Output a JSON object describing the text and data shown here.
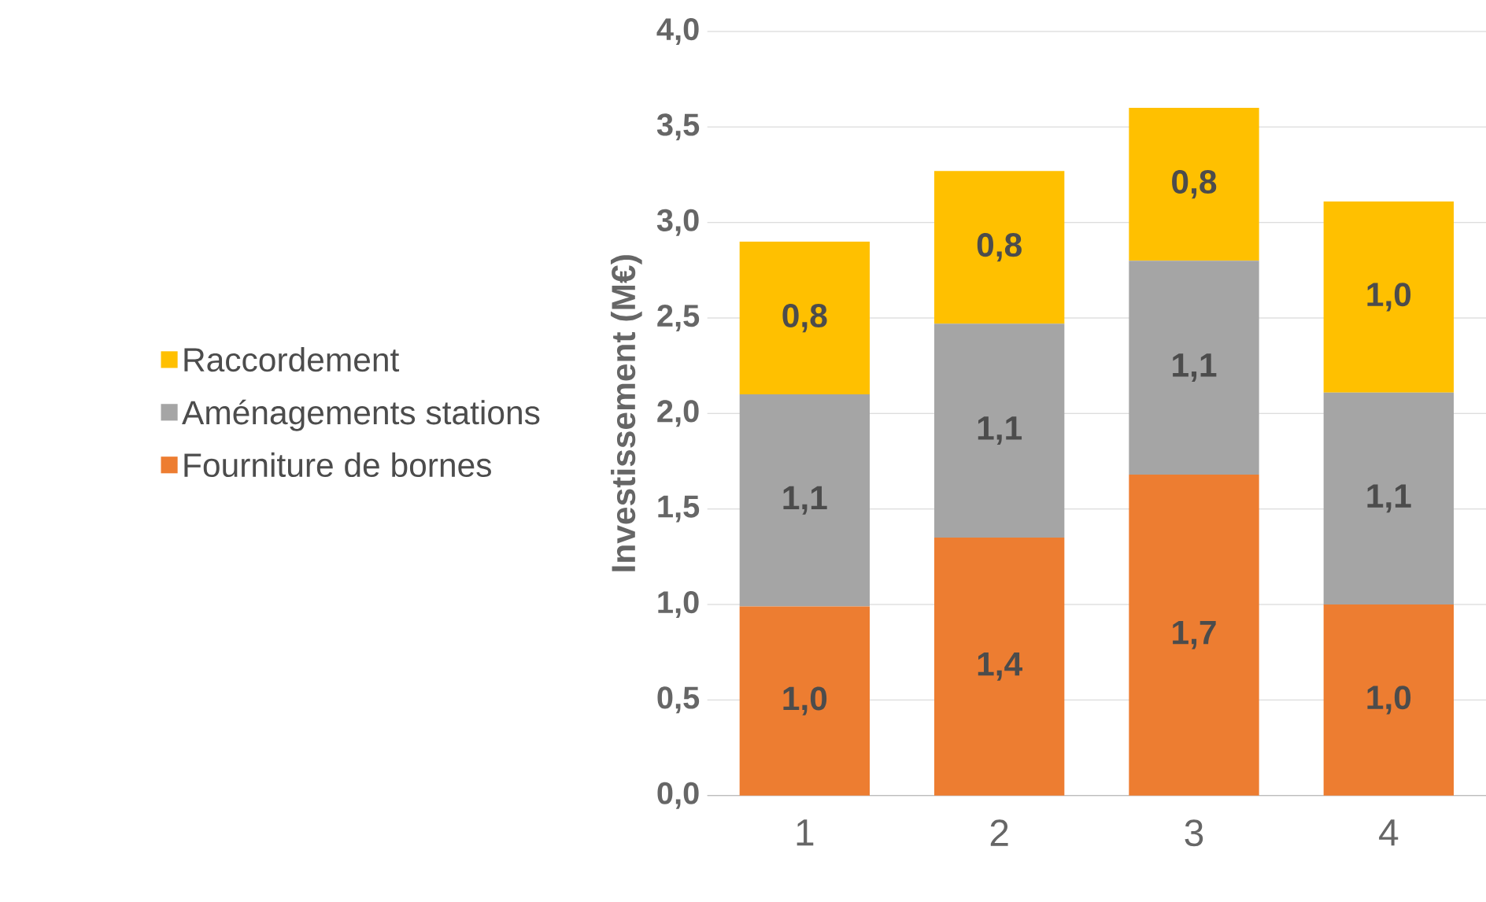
{
  "chart_data": {
    "type": "bar",
    "stacked": true,
    "ylabel": "Investissement (M€)",
    "categories": [
      "1",
      "2",
      "3",
      "4"
    ],
    "series": [
      {
        "name": "Fourniture de bornes",
        "color": "#ed7d31",
        "values": [
          0.99,
          1.35,
          1.68,
          1.0
        ],
        "value_labels": [
          "1,0",
          "1,4",
          "1,7",
          "1,0"
        ]
      },
      {
        "name": "Aménagements stations",
        "color": "#a5a5a5",
        "values": [
          1.11,
          1.12,
          1.12,
          1.11
        ],
        "value_labels": [
          "1,1",
          "1,1",
          "1,1",
          "1,1"
        ]
      },
      {
        "name": "Raccordement",
        "color": "#ffc000",
        "values": [
          0.8,
          0.8,
          0.8,
          1.0
        ],
        "value_labels": [
          "0,8",
          "0,8",
          "0,8",
          "1,0"
        ]
      }
    ],
    "ylim": [
      0,
      4
    ],
    "yticks": [
      {
        "value": 0,
        "label": "0,0"
      },
      {
        "value": 0.5,
        "label": "0,5"
      },
      {
        "value": 1,
        "label": "1,0"
      },
      {
        "value": 1.5,
        "label": "1,5"
      },
      {
        "value": 2,
        "label": "2,0"
      },
      {
        "value": 2.5,
        "label": "2,5"
      },
      {
        "value": 3,
        "label": "3,0"
      },
      {
        "value": 3.5,
        "label": "3,5"
      },
      {
        "value": 4,
        "label": "4,0"
      }
    ],
    "grid": "y",
    "legend": "left"
  }
}
